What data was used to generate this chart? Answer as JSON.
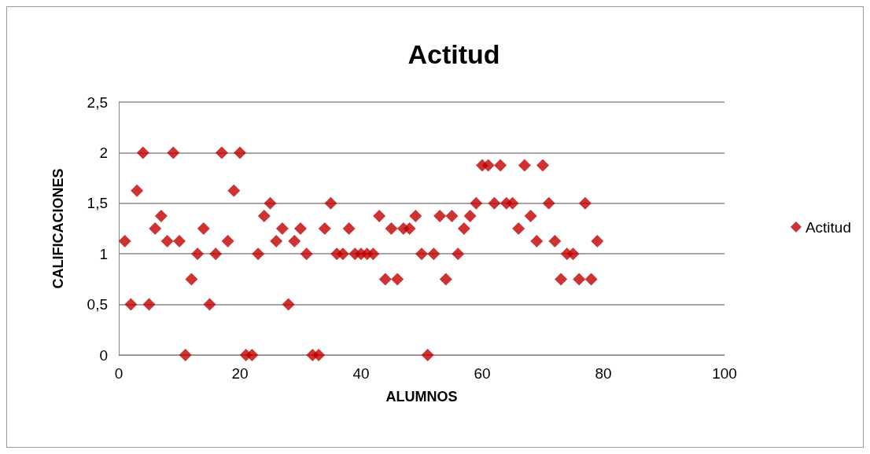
{
  "chart_data": {
    "type": "scatter",
    "title": "Actitud",
    "xlabel": "ALUMNOS",
    "ylabel": "CALIFICACIONES",
    "xlim": [
      0,
      100
    ],
    "xticks": [
      0,
      20,
      40,
      60,
      80,
      100
    ],
    "ylim": [
      0,
      2.5
    ],
    "yticks": [
      0,
      {
        "value": 0.5,
        "label": "0,5"
      },
      1,
      {
        "value": 1.5,
        "label": "1,5"
      },
      2,
      {
        "value": 2.5,
        "label": "2,5"
      }
    ],
    "grid": "y",
    "legend": "right",
    "marker": "diamond",
    "x": [
      1,
      2,
      3,
      4,
      5,
      6,
      7,
      8,
      9,
      10,
      11,
      12,
      13,
      14,
      15,
      16,
      17,
      18,
      19,
      20,
      21,
      22,
      23,
      24,
      25,
      26,
      27,
      28,
      29,
      30,
      31,
      32,
      33,
      34,
      35,
      36,
      37,
      38,
      39,
      40,
      41,
      42,
      43,
      44,
      45,
      46,
      47,
      48,
      49,
      50,
      51,
      52,
      53,
      54,
      55,
      56,
      57,
      58,
      59,
      60,
      61,
      62,
      63,
      64,
      65,
      66,
      67,
      68,
      69,
      70,
      71,
      72,
      73,
      74,
      75,
      76,
      77,
      78,
      79
    ],
    "series": [
      {
        "name": "Actitud",
        "color": "#c00000",
        "values": [
          1.125,
          0.5,
          1.625,
          2,
          0.5,
          1.25,
          1.375,
          1.125,
          2,
          1.125,
          0,
          0.75,
          1,
          1.25,
          0.5,
          1,
          2,
          1.125,
          1.625,
          2,
          0,
          0,
          1,
          1.375,
          1.5,
          1.125,
          1.25,
          0.5,
          1.125,
          1.25,
          1,
          0,
          0,
          1.25,
          1.5,
          1,
          1,
          1.25,
          1,
          1,
          1,
          1,
          1.375,
          0.75,
          1.25,
          0.75,
          1.25,
          1.25,
          1.375,
          1,
          0,
          1,
          1.375,
          0.75,
          1.375,
          1,
          1.25,
          1.375,
          1.5,
          1.875,
          1.875,
          1.5,
          1.875,
          1.5,
          1.5,
          1.25,
          1.875,
          1.375,
          1.125,
          1.875,
          1.5,
          1.125,
          0.75,
          1,
          1,
          0.75,
          1.5,
          0.75,
          1.125
        ]
      }
    ]
  }
}
